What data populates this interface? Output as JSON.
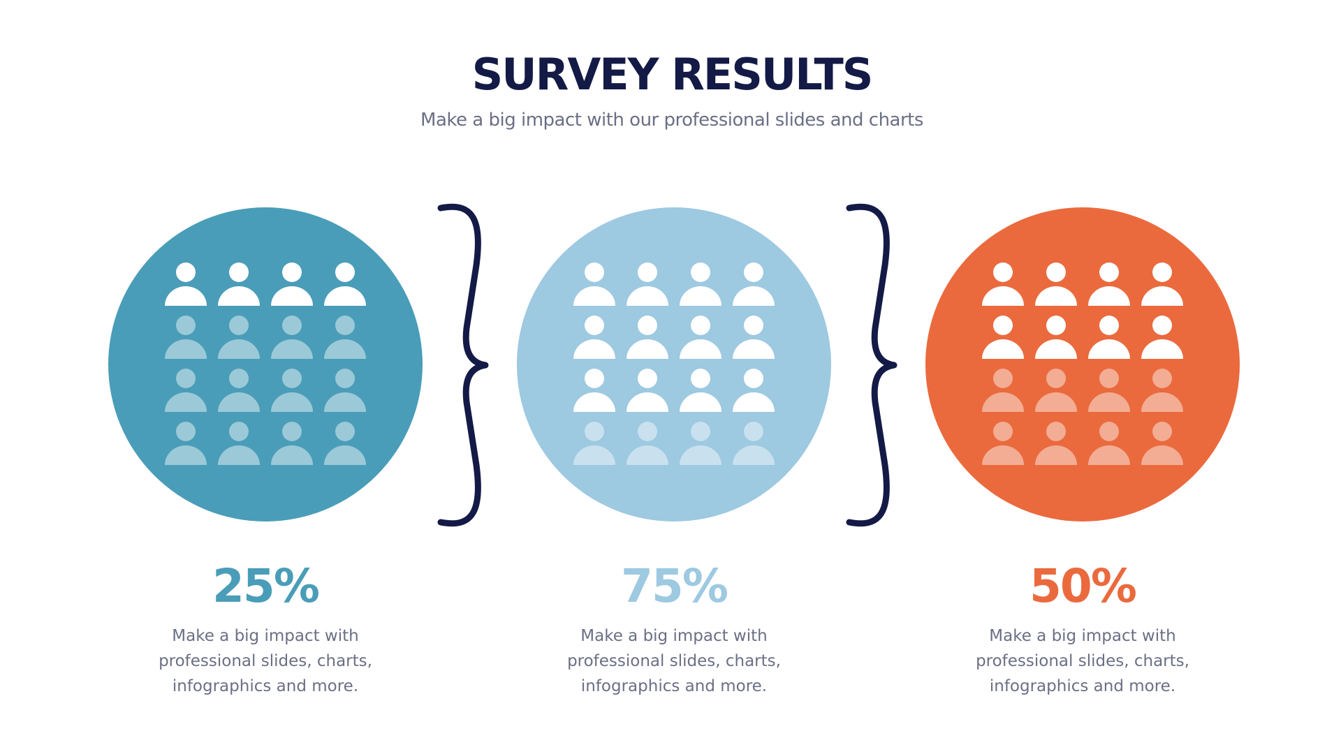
{
  "title": "SURVEY RESULTS",
  "subtitle": "Make a big impact with our professional slides and charts",
  "panels": [
    {
      "value": 25,
      "value_label": "25%",
      "color": "#4a9db8",
      "description": "Make a big impact with professional slides, charts, infographics and more."
    },
    {
      "value": 75,
      "value_label": "75%",
      "color": "#9dc9e1",
      "description": "Make a big impact with professional slides, charts, infographics and more."
    },
    {
      "value": 50,
      "value_label": "50%",
      "color": "#ea6a3d",
      "description": "Make a big impact with professional slides, charts, infographics and more."
    }
  ]
}
